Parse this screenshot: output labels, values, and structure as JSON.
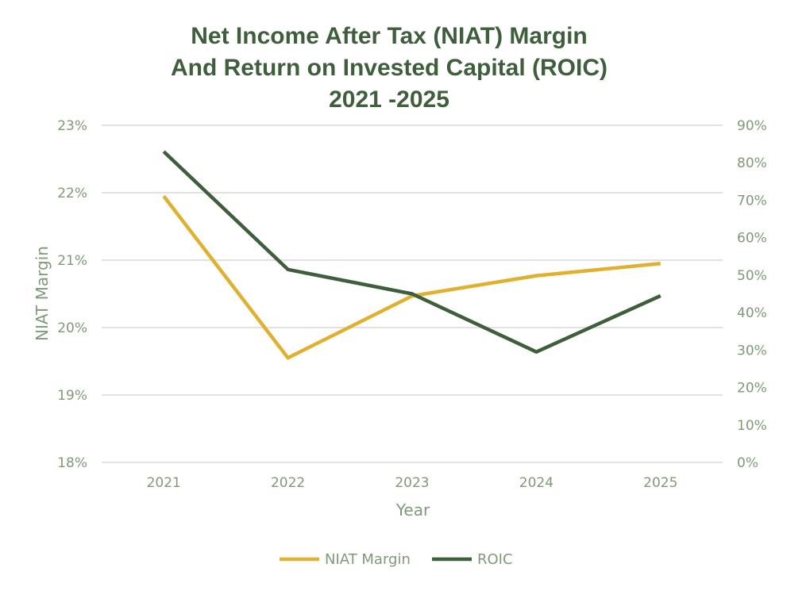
{
  "chart_data": {
    "type": "line",
    "title_lines": [
      "Net Income After Tax (NIAT) Margin",
      "And Return on Invested Capital (ROIC)",
      "2021 -2025"
    ],
    "xlabel": "Year",
    "ylabel": "NIAT Margin",
    "y2label": "",
    "categories": [
      "2021",
      "2022",
      "2023",
      "2024",
      "2025"
    ],
    "ylim": [
      18,
      23
    ],
    "y_ticks": [
      "18%",
      "19%",
      "20%",
      "21%",
      "22%",
      "23%"
    ],
    "y2lim": [
      0,
      90
    ],
    "y2_ticks": [
      "0%",
      "10%",
      "20%",
      "30%",
      "40%",
      "50%",
      "60%",
      "70%",
      "80%",
      "90%"
    ],
    "grid": true,
    "legend_position": "bottom",
    "series": [
      {
        "name": "NIAT Margin",
        "axis": "left",
        "color": "#e0b12f",
        "values": [
          21.95,
          19.55,
          20.47,
          20.77,
          20.95
        ]
      },
      {
        "name": "ROIC",
        "axis": "right",
        "color": "#3f5e3c",
        "values": [
          83,
          51.5,
          45,
          29.5,
          44.5
        ]
      }
    ]
  }
}
